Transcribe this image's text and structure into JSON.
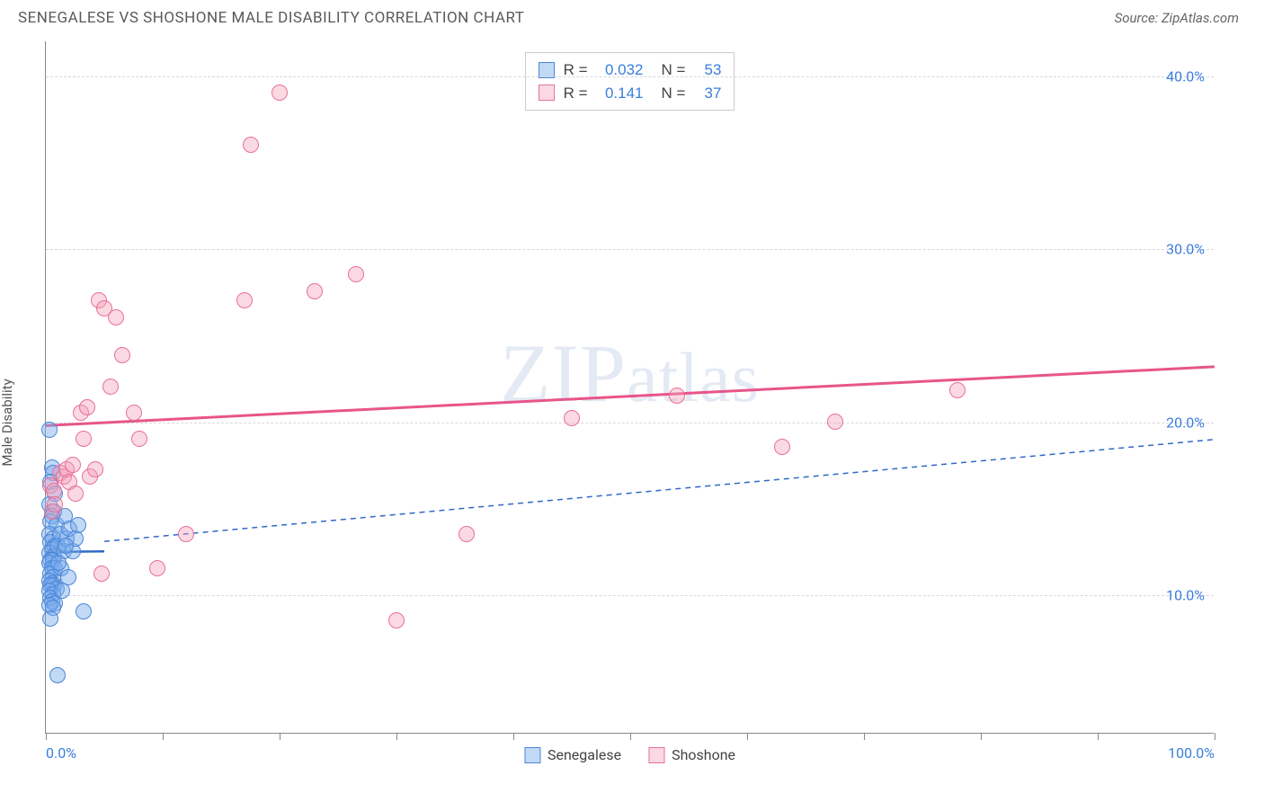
{
  "header": {
    "title": "SENEGALESE VS SHOSHONE MALE DISABILITY CORRELATION CHART",
    "source": "Source: ZipAtlas.com"
  },
  "chart": {
    "type": "scatter",
    "ylabel": "Male Disability",
    "watermark": "ZIPatlas",
    "background_color": "#ffffff",
    "grid_color": "#d8d8d8",
    "axis_color": "#888888",
    "tick_label_color": "#3b7ddd",
    "xlim": [
      0,
      100
    ],
    "ylim": [
      2,
      42
    ],
    "xtick_positions": [
      0,
      10,
      20,
      30,
      40,
      50,
      60,
      70,
      80,
      90,
      100
    ],
    "xtick_labels_shown": {
      "0": "0.0%",
      "100": "100.0%"
    },
    "ytick_positions": [
      10,
      20,
      30,
      40
    ],
    "ytick_labels": [
      "10.0%",
      "20.0%",
      "30.0%",
      "40.0%"
    ],
    "marker_radius": 9,
    "marker_border_width": 1.5,
    "series": [
      {
        "name": "Senegalese",
        "color_fill": "rgba(120,170,235,0.45)",
        "color_stroke": "#4a86d8",
        "regression": {
          "y_at_x0": 12.5,
          "y_at_x100": 13.2,
          "dash": "none",
          "width": 2.5,
          "color": "#2f69c9",
          "x_extent": [
            0,
            5
          ]
        },
        "regression_ext": {
          "y_at_x0": 12.8,
          "y_at_x100": 19.0,
          "dash": "6,5",
          "width": 1.5,
          "color": "#2f69c9",
          "x_extent": [
            5,
            100
          ]
        },
        "points": [
          [
            0.3,
            19.5
          ],
          [
            0.5,
            17.3
          ],
          [
            0.6,
            17.0
          ],
          [
            0.4,
            16.5
          ],
          [
            0.8,
            15.8
          ],
          [
            0.3,
            15.2
          ],
          [
            0.7,
            14.8
          ],
          [
            0.5,
            14.5
          ],
          [
            0.4,
            14.2
          ],
          [
            0.9,
            14.0
          ],
          [
            0.3,
            13.5
          ],
          [
            0.6,
            13.2
          ],
          [
            0.4,
            13.0
          ],
          [
            0.8,
            12.8
          ],
          [
            0.5,
            12.6
          ],
          [
            0.3,
            12.4
          ],
          [
            0.7,
            12.2
          ],
          [
            0.4,
            12.0
          ],
          [
            0.6,
            12.0
          ],
          [
            0.3,
            11.8
          ],
          [
            0.5,
            11.5
          ],
          [
            0.8,
            11.5
          ],
          [
            0.4,
            11.2
          ],
          [
            0.6,
            11.0
          ],
          [
            0.3,
            10.8
          ],
          [
            0.5,
            10.6
          ],
          [
            0.7,
            10.5
          ],
          [
            0.4,
            10.5
          ],
          [
            0.9,
            10.3
          ],
          [
            0.3,
            10.2
          ],
          [
            0.6,
            10.0
          ],
          [
            0.4,
            9.8
          ],
          [
            0.5,
            9.6
          ],
          [
            0.8,
            9.5
          ],
          [
            0.3,
            9.4
          ],
          [
            0.6,
            9.2
          ],
          [
            0.4,
            8.6
          ],
          [
            1.0,
            12.8
          ],
          [
            1.2,
            13.5
          ],
          [
            1.5,
            12.5
          ],
          [
            1.8,
            13.2
          ],
          [
            1.3,
            11.5
          ],
          [
            1.6,
            14.5
          ],
          [
            1.1,
            11.8
          ],
          [
            2.0,
            13.8
          ],
          [
            2.3,
            12.5
          ],
          [
            2.5,
            13.2
          ],
          [
            1.4,
            10.2
          ],
          [
            1.9,
            11.0
          ],
          [
            2.8,
            14.0
          ],
          [
            3.2,
            9.0
          ],
          [
            1.0,
            5.3
          ],
          [
            1.7,
            12.8
          ]
        ]
      },
      {
        "name": "Shoshone",
        "color_fill": "rgba(245,160,185,0.40)",
        "color_stroke": "#e86f98",
        "regression": {
          "y_at_x0": 19.8,
          "y_at_x100": 23.2,
          "dash": "none",
          "width": 3,
          "color": "#e8558a",
          "x_extent": [
            0,
            100
          ]
        },
        "points": [
          [
            0.4,
            16.3
          ],
          [
            0.7,
            16.0
          ],
          [
            0.5,
            14.8
          ],
          [
            0.8,
            15.2
          ],
          [
            1.2,
            17.0
          ],
          [
            1.5,
            16.8
          ],
          [
            1.8,
            17.2
          ],
          [
            2.0,
            16.5
          ],
          [
            2.3,
            17.5
          ],
          [
            2.5,
            15.8
          ],
          [
            3.0,
            20.5
          ],
          [
            3.5,
            20.8
          ],
          [
            3.2,
            19.0
          ],
          [
            3.8,
            16.8
          ],
          [
            4.2,
            17.2
          ],
          [
            4.5,
            27.0
          ],
          [
            5.0,
            26.5
          ],
          [
            5.5,
            22.0
          ],
          [
            6.0,
            26.0
          ],
          [
            6.5,
            23.8
          ],
          [
            7.5,
            20.5
          ],
          [
            8.0,
            19.0
          ],
          [
            9.5,
            11.5
          ],
          [
            12.0,
            13.5
          ],
          [
            17.0,
            27.0
          ],
          [
            17.5,
            36.0
          ],
          [
            20.0,
            39.0
          ],
          [
            23.0,
            27.5
          ],
          [
            26.5,
            28.5
          ],
          [
            30.0,
            8.5
          ],
          [
            36.0,
            13.5
          ],
          [
            45.0,
            20.2
          ],
          [
            54.0,
            21.5
          ],
          [
            63.0,
            18.5
          ],
          [
            67.5,
            20.0
          ],
          [
            78.0,
            21.8
          ],
          [
            4.8,
            11.2
          ]
        ]
      }
    ],
    "stats_box": {
      "rows": [
        {
          "swatch_fill": "rgba(120,170,235,0.45)",
          "swatch_stroke": "#4a86d8",
          "r_label": "R =",
          "r_val": "0.032",
          "n_label": "N =",
          "n_val": "53"
        },
        {
          "swatch_fill": "rgba(245,160,185,0.40)",
          "swatch_stroke": "#e86f98",
          "r_label": "R =",
          "r_val": "0.141",
          "n_label": "N =",
          "n_val": "37"
        }
      ]
    },
    "bottom_legend": [
      {
        "swatch_fill": "rgba(120,170,235,0.45)",
        "swatch_stroke": "#4a86d8",
        "label": "Senegalese"
      },
      {
        "swatch_fill": "rgba(245,160,185,0.40)",
        "swatch_stroke": "#e86f98",
        "label": "Shoshone"
      }
    ]
  }
}
